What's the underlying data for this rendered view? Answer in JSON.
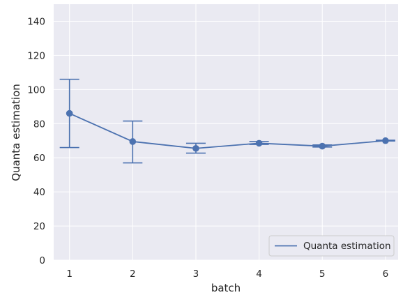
{
  "chart_data": {
    "type": "line",
    "title": "",
    "xlabel": "batch",
    "ylabel": "Quanta estimation",
    "x": [
      1,
      2,
      3,
      4,
      5,
      6
    ],
    "xticks": [
      "1",
      "2",
      "3",
      "4",
      "5",
      "6"
    ],
    "xlim": [
      0.75,
      6.2
    ],
    "ylim": [
      0,
      150
    ],
    "yticks": [
      0,
      20,
      40,
      60,
      80,
      100,
      120,
      140
    ],
    "ytick_labels": [
      "0",
      "20",
      "40",
      "60",
      "80",
      "100",
      "120",
      "140"
    ],
    "grid": true,
    "legend_position": "lower-right",
    "series": [
      {
        "name": "Quanta estimation",
        "color": "#4c72b0",
        "values": [
          86,
          69.5,
          65.5,
          68.5,
          66.8,
          70
        ],
        "err_low": [
          66,
          57,
          62.7,
          67.8,
          66.3,
          69.8
        ],
        "err_high": [
          106,
          81.5,
          68.5,
          69.5,
          67.5,
          70.3
        ]
      }
    ]
  },
  "style": {
    "plot_background": "#eaeaf2",
    "grid_color": "#ffffff"
  }
}
